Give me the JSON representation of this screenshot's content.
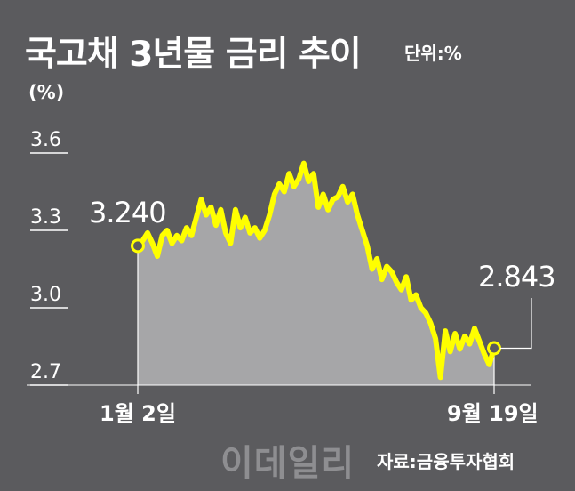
{
  "header": {
    "title": "국고채 3년물 금리 추이",
    "unit": "단위:%"
  },
  "footer": {
    "source": "자료:금융투자협회",
    "watermark": "이데일리"
  },
  "colors": {
    "background": "#5b5b5e",
    "line": "#ffff00",
    "area": "#a6a6a8",
    "text": "#ffffff"
  },
  "chart_data": {
    "type": "area",
    "title": "국고채 3년물 금리 추이",
    "ylabel": "(%)",
    "y_ticks": [
      "3.6",
      "3.3",
      "3.0",
      "2.7"
    ],
    "ylim": [
      2.7,
      3.6
    ],
    "x_labels": [
      "1월 2일",
      "9월 19일"
    ],
    "grid": false,
    "legend": "none",
    "series": [
      {
        "values": [
          3.24,
          3.26,
          3.29,
          3.25,
          3.2,
          3.28,
          3.3,
          3.25,
          3.28,
          3.26,
          3.31,
          3.28,
          3.35,
          3.42,
          3.36,
          3.39,
          3.32,
          3.38,
          3.29,
          3.25,
          3.38,
          3.31,
          3.35,
          3.29,
          3.31,
          3.27,
          3.3,
          3.36,
          3.44,
          3.48,
          3.45,
          3.52,
          3.47,
          3.5,
          3.56,
          3.49,
          3.52,
          3.39,
          3.44,
          3.38,
          3.42,
          3.43,
          3.47,
          3.41,
          3.44,
          3.36,
          3.3,
          3.24,
          3.15,
          3.19,
          3.11,
          3.16,
          3.14,
          3.1,
          3.07,
          3.12,
          3.03,
          3.05,
          3.0,
          2.98,
          2.94,
          2.88,
          2.73,
          2.91,
          2.83,
          2.9,
          2.84,
          2.89,
          2.86,
          2.92,
          2.87,
          2.82,
          2.78,
          2.843
        ]
      }
    ],
    "annotations": [
      {
        "label": "3.240",
        "value": 3.24,
        "position": "start"
      },
      {
        "label": "2.843",
        "value": 2.843,
        "position": "end"
      }
    ]
  }
}
